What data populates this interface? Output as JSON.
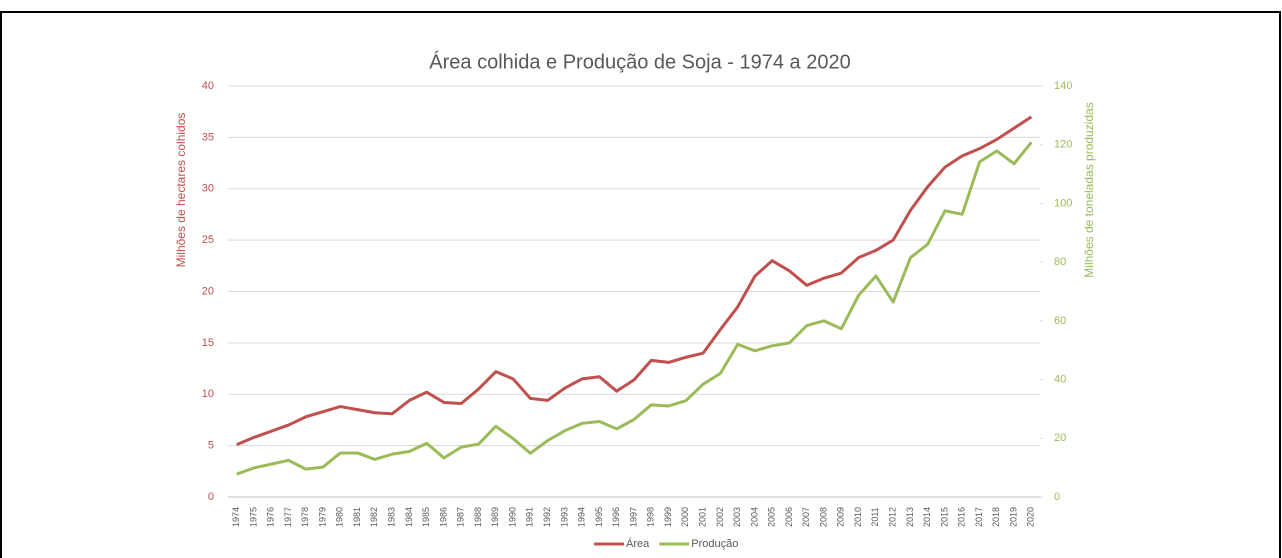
{
  "chart_data": {
    "type": "line",
    "title": "Área colhida e Produção de Soja - 1974 a 2020",
    "y_label": "Milhões de hectares colhidos",
    "y2_label": "Milhões de toneladas produzidas",
    "categories": [
      "1974",
      "1975",
      "1976",
      "1977",
      "1978",
      "1979",
      "1980",
      "1981",
      "1982",
      "1983",
      "1984",
      "1985",
      "1986",
      "1987",
      "1988",
      "1989",
      "1990",
      "1991",
      "1992",
      "1993",
      "1994",
      "1995",
      "1996",
      "1997",
      "1998",
      "1999",
      "2000",
      "2001",
      "2002",
      "2003",
      "2004",
      "2005",
      "2006",
      "2007",
      "2008",
      "2009",
      "2010",
      "2011",
      "2012",
      "2013",
      "2014",
      "2015",
      "2016",
      "2017",
      "2018",
      "2019",
      "2020"
    ],
    "series": [
      {
        "name": "Área",
        "color": "#c0504d",
        "axis": "y",
        "values": [
          5.1,
          5.8,
          6.4,
          7.0,
          7.8,
          8.3,
          8.8,
          8.5,
          8.2,
          8.1,
          9.4,
          10.2,
          9.2,
          9.1,
          10.5,
          12.2,
          11.5,
          9.6,
          9.4,
          10.6,
          11.5,
          11.7,
          10.3,
          11.4,
          13.3,
          13.1,
          13.6,
          14.0,
          16.3,
          18.5,
          21.5,
          23.0,
          22.0,
          20.6,
          21.3,
          21.8,
          23.3,
          24.0,
          25.0,
          27.9,
          30.2,
          32.1,
          33.2,
          33.9,
          34.8,
          35.9,
          37.0
        ]
      },
      {
        "name": "Produção",
        "color": "#9bbb59",
        "axis": "y2",
        "values": [
          7.8,
          9.9,
          11.2,
          12.5,
          9.5,
          10.2,
          15.0,
          15.0,
          12.8,
          14.6,
          15.5,
          18.3,
          13.3,
          17.0,
          18.0,
          24.1,
          19.9,
          14.9,
          19.2,
          22.6,
          25.1,
          25.7,
          23.2,
          26.4,
          31.4,
          31.0,
          32.8,
          38.4,
          42.1,
          52.0,
          49.8,
          51.5,
          52.5,
          58.4,
          60.0,
          57.3,
          68.7,
          75.3,
          66.4,
          81.5,
          86.1,
          97.5,
          96.3,
          114.1,
          117.9,
          113.5,
          120.8
        ]
      }
    ],
    "ylim": [
      0,
      40
    ],
    "yticks": [
      0,
      5,
      10,
      15,
      20,
      25,
      30,
      35,
      40
    ],
    "y2lim": [
      0,
      140
    ],
    "y2ticks": [
      0,
      20,
      40,
      60,
      80,
      100,
      120,
      140
    ],
    "grid": true,
    "legend": "bottom"
  }
}
